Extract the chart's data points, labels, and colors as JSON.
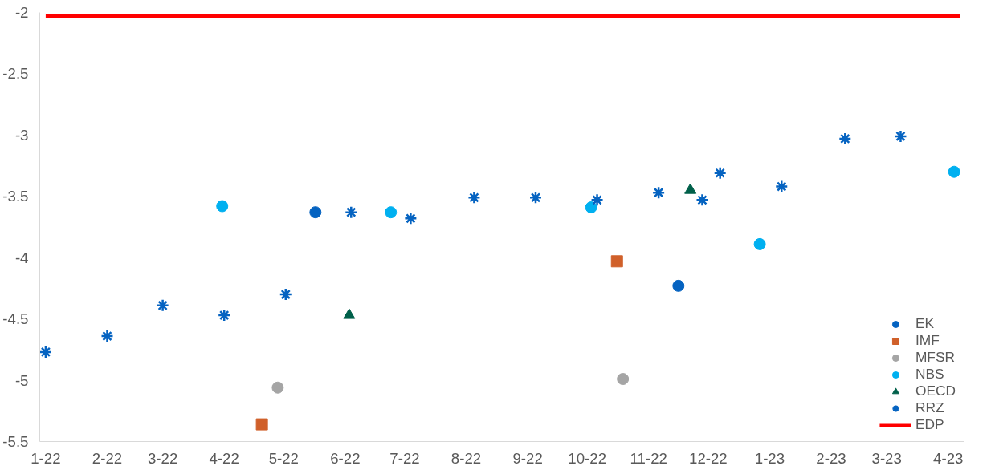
{
  "chart_data": {
    "type": "scatter",
    "xlim": [
      "2021-12-29",
      "2023-04-09"
    ],
    "ylim": [
      -5.5,
      -2
    ],
    "xticks": [
      {
        "value": "2022-01-01",
        "label": "1-22"
      },
      {
        "value": "2022-02-01",
        "label": "2-22"
      },
      {
        "value": "2022-03-01",
        "label": "3-22"
      },
      {
        "value": "2022-04-01",
        "label": "4-22"
      },
      {
        "value": "2022-05-01",
        "label": "5-22"
      },
      {
        "value": "2022-06-01",
        "label": "6-22"
      },
      {
        "value": "2022-07-01",
        "label": "7-22"
      },
      {
        "value": "2022-08-01",
        "label": "8-22"
      },
      {
        "value": "2022-09-01",
        "label": "9-22"
      },
      {
        "value": "2022-10-01",
        "label": "10-22"
      },
      {
        "value": "2022-11-01",
        "label": "11-22"
      },
      {
        "value": "2022-12-01",
        "label": "12-22"
      },
      {
        "value": "2023-01-01",
        "label": "1-23"
      },
      {
        "value": "2023-02-01",
        "label": "2-23"
      },
      {
        "value": "2023-03-01",
        "label": "3-23"
      },
      {
        "value": "2023-04-01",
        "label": "4-23"
      }
    ],
    "yticks": [
      -5.5,
      -5,
      -4.5,
      -4,
      -3.5,
      -3,
      -2.5,
      -2
    ],
    "legend": "bottom right",
    "grid": false,
    "series": [
      {
        "name": "EK",
        "color": "#0563c1",
        "marker": "circle",
        "x": [
          "2022-05-17",
          "2022-11-16"
        ],
        "values": [
          -3.63,
          -4.23
        ]
      },
      {
        "name": "IMF",
        "color": "#d0602a",
        "marker": "square",
        "x": [
          "2022-04-20",
          "2022-10-16"
        ],
        "values": [
          -5.36,
          -4.03
        ]
      },
      {
        "name": "MFSR",
        "color": "#a5a5a5",
        "marker": "circle",
        "x": [
          "2022-04-28",
          "2022-10-19"
        ],
        "values": [
          -5.06,
          -4.99
        ]
      },
      {
        "name": "NBS",
        "color": "#00b0f0",
        "marker": "circle",
        "x": [
          "2022-03-31",
          "2022-06-24",
          "2022-10-03",
          "2022-12-27",
          "2023-04-04"
        ],
        "values": [
          -3.58,
          -3.63,
          -3.59,
          -3.89,
          -3.3
        ]
      },
      {
        "name": "OECD",
        "color": "#00604a",
        "marker": "triangle",
        "x": [
          "2022-06-03",
          "2022-11-22"
        ],
        "values": [
          -4.47,
          -3.45
        ]
      },
      {
        "name": "RRZ",
        "color": "#0563c1",
        "marker": "cross",
        "x": [
          "2022-01-01",
          "2022-02-01",
          "2022-03-01",
          "2022-04-01",
          "2022-05-02",
          "2022-06-04",
          "2022-07-04",
          "2022-08-05",
          "2022-09-05",
          "2022-10-06",
          "2022-11-06",
          "2022-11-28",
          "2022-12-07",
          "2023-01-07",
          "2023-02-08",
          "2023-03-08"
        ],
        "values": [
          -4.77,
          -4.64,
          -4.39,
          -4.47,
          -4.3,
          -3.63,
          -3.68,
          -3.51,
          -3.51,
          -3.53,
          -3.47,
          -3.53,
          -3.31,
          -3.42,
          -3.03,
          -3.01
        ]
      },
      {
        "name": "EDP",
        "color": "#ff0000",
        "type": "line",
        "line_style": "solid",
        "marker": "none",
        "x": [
          "2022-01-01",
          "2023-04-07"
        ],
        "values": [
          -2.03,
          -2.03
        ]
      }
    ]
  }
}
